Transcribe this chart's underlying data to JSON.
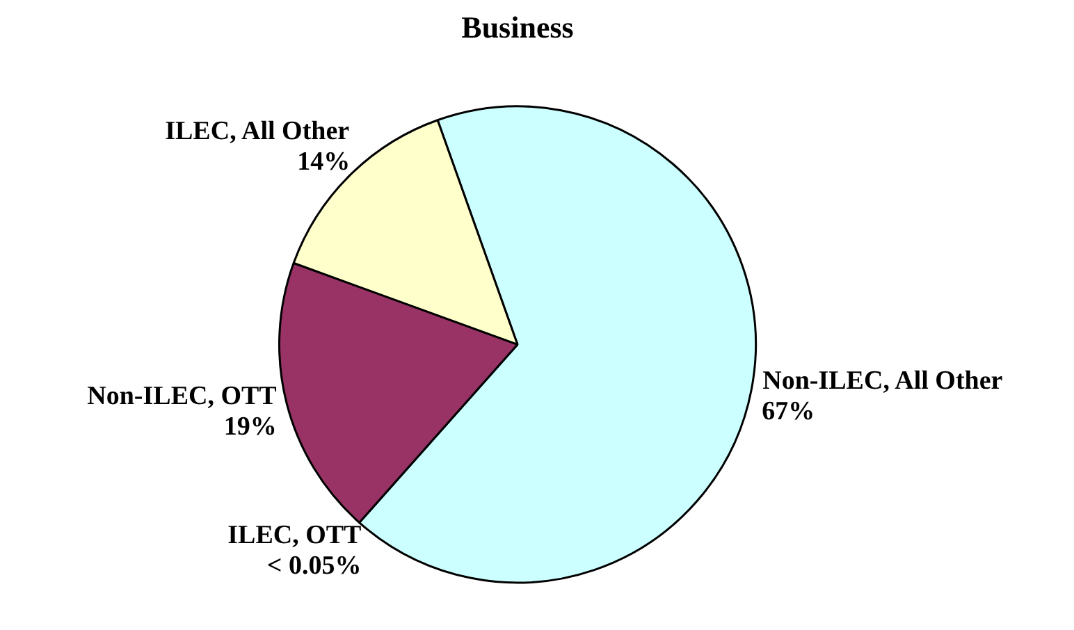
{
  "chart_data": {
    "type": "pie",
    "title": "Business",
    "categories": [
      "Non-ILEC, All Other",
      "ILEC, OTT",
      "Non-ILEC, OTT",
      "ILEC, All Other"
    ],
    "values": [
      67,
      0,
      19,
      14
    ],
    "value_labels": [
      "67%",
      "< 0.05%",
      "19%",
      "14%"
    ],
    "colors": [
      "#ccffff",
      "#000080",
      "#993366",
      "#ffffcc"
    ],
    "legend": false
  }
}
